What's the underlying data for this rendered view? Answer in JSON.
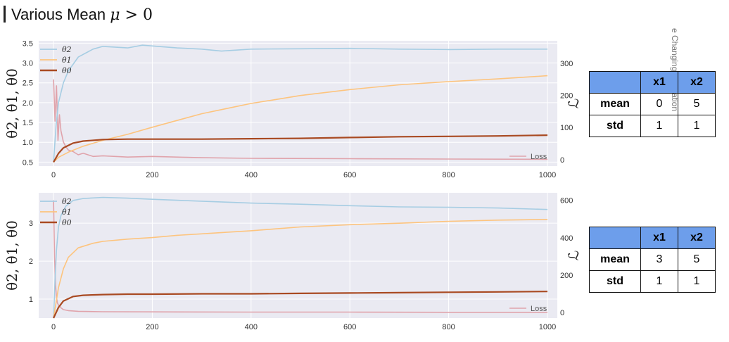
{
  "header": {
    "title_text": "Various Mean ",
    "title_math_var": "μ",
    "title_math_rest": " > 0",
    "side_text": "e Changing Education"
  },
  "colors": {
    "theta2": "#a6cde3",
    "theta1": "#fdc47e",
    "theta0": "#a94a22",
    "loss": "#e0a3ab",
    "plot_bg": "#eaeaf2",
    "table_header": "#6d9eeb"
  },
  "chart_data": [
    {
      "type": "line",
      "x_ticks": [
        "0",
        "200",
        "400",
        "600",
        "800",
        "1000"
      ],
      "y_ticks": [
        "0.5",
        "1.0",
        "1.5",
        "2.0",
        "2.5",
        "3.0",
        "3.5"
      ],
      "y2_ticks": [
        "0",
        "100",
        "200",
        "300"
      ],
      "ylabel": "θ2, θ1, θ0",
      "y2label": "ℒ",
      "xlim": [
        -30,
        1020
      ],
      "ylim": [
        0.4,
        3.56
      ],
      "y2lim": [
        -20,
        370
      ],
      "grid": true,
      "legend_top": [
        "θ2",
        "θ1",
        "θ0"
      ],
      "legend_bottom": "Loss",
      "series": [
        {
          "key": "theta2",
          "x": [
            0,
            5,
            10,
            20,
            30,
            50,
            80,
            100,
            150,
            180,
            250,
            300,
            340,
            400,
            500,
            600,
            700,
            800,
            900,
            1000
          ],
          "y": [
            0.5,
            1.4,
            2.0,
            2.5,
            2.8,
            3.15,
            3.35,
            3.42,
            3.38,
            3.45,
            3.38,
            3.35,
            3.3,
            3.35,
            3.36,
            3.37,
            3.35,
            3.34,
            3.35,
            3.35
          ]
        },
        {
          "key": "theta1",
          "x": [
            0,
            10,
            30,
            60,
            100,
            150,
            200,
            250,
            300,
            350,
            400,
            450,
            500,
            600,
            700,
            800,
            900,
            1000
          ],
          "y": [
            0.5,
            0.62,
            0.75,
            0.9,
            1.05,
            1.2,
            1.38,
            1.55,
            1.72,
            1.85,
            1.98,
            2.08,
            2.18,
            2.33,
            2.45,
            2.53,
            2.6,
            2.68
          ]
        },
        {
          "key": "theta0",
          "x": [
            0,
            10,
            20,
            40,
            60,
            100,
            150,
            200,
            300,
            400,
            500,
            600,
            700,
            800,
            900,
            1000
          ],
          "y": [
            0.5,
            0.72,
            0.86,
            0.98,
            1.03,
            1.07,
            1.08,
            1.08,
            1.08,
            1.09,
            1.1,
            1.12,
            1.14,
            1.15,
            1.16,
            1.18
          ]
        },
        {
          "key": "loss",
          "x": [
            0,
            3,
            6,
            9,
            12,
            15,
            20,
            25,
            30,
            40,
            50,
            60,
            80,
            100,
            150,
            200,
            300,
            400,
            600,
            800,
            1000
          ],
          "y": [
            250,
            120,
            230,
            60,
            140,
            90,
            55,
            40,
            30,
            25,
            15,
            20,
            10,
            12,
            8,
            10,
            6,
            4,
            3,
            2,
            1
          ]
        }
      ]
    },
    {
      "type": "line",
      "x_ticks": [
        "0",
        "200",
        "400",
        "600",
        "800",
        "1000"
      ],
      "y_ticks": [
        "1",
        "2",
        "3"
      ],
      "y2_ticks": [
        "0",
        "200",
        "400",
        "600"
      ],
      "ylabel": "θ2, θ1, θ0",
      "y2label": "ℒ",
      "xlim": [
        -30,
        1020
      ],
      "ylim": [
        0.5,
        3.8
      ],
      "y2lim": [
        -30,
        640
      ],
      "grid": true,
      "legend_top": [
        "θ2",
        "θ1",
        "θ0"
      ],
      "legend_bottom": "Loss",
      "series": [
        {
          "key": "theta2",
          "x": [
            0,
            3,
            6,
            10,
            15,
            25,
            40,
            60,
            100,
            150,
            200,
            300,
            400,
            500,
            600,
            700,
            800,
            900,
            1000
          ],
          "y": [
            0.5,
            1.5,
            2.3,
            2.9,
            3.2,
            3.45,
            3.6,
            3.65,
            3.68,
            3.66,
            3.63,
            3.58,
            3.53,
            3.5,
            3.46,
            3.43,
            3.42,
            3.4,
            3.36
          ]
        },
        {
          "key": "theta1",
          "x": [
            0,
            5,
            10,
            20,
            30,
            50,
            80,
            100,
            150,
            200,
            250,
            300,
            350,
            400,
            450,
            500,
            600,
            700,
            800,
            900,
            1000
          ],
          "y": [
            0.5,
            0.9,
            1.3,
            1.8,
            2.1,
            2.35,
            2.47,
            2.52,
            2.58,
            2.62,
            2.68,
            2.72,
            2.76,
            2.8,
            2.85,
            2.9,
            2.96,
            3.0,
            3.05,
            3.08,
            3.1
          ]
        },
        {
          "key": "theta0",
          "x": [
            0,
            10,
            20,
            40,
            60,
            100,
            150,
            200,
            300,
            400,
            500,
            600,
            700,
            800,
            900,
            1000
          ],
          "y": [
            0.5,
            0.78,
            0.95,
            1.07,
            1.1,
            1.12,
            1.13,
            1.13,
            1.14,
            1.14,
            1.15,
            1.16,
            1.17,
            1.18,
            1.19,
            1.2
          ]
        },
        {
          "key": "loss",
          "x": [
            0,
            2,
            4,
            6,
            8,
            10,
            15,
            20,
            30,
            50,
            100,
            200,
            400,
            600,
            800,
            1000
          ],
          "y": [
            600,
            300,
            150,
            80,
            50,
            40,
            25,
            15,
            10,
            6,
            4,
            3,
            2,
            2,
            1,
            1
          ]
        }
      ]
    }
  ],
  "tables": [
    {
      "cols": [
        "x1",
        "x2"
      ],
      "rows": [
        {
          "label": "mean",
          "values": [
            "0",
            "5"
          ]
        },
        {
          "label": "std",
          "values": [
            "1",
            "1"
          ]
        }
      ]
    },
    {
      "cols": [
        "x1",
        "x2"
      ],
      "rows": [
        {
          "label": "mean",
          "values": [
            "3",
            "5"
          ]
        },
        {
          "label": "std",
          "values": [
            "1",
            "1"
          ]
        }
      ]
    }
  ]
}
